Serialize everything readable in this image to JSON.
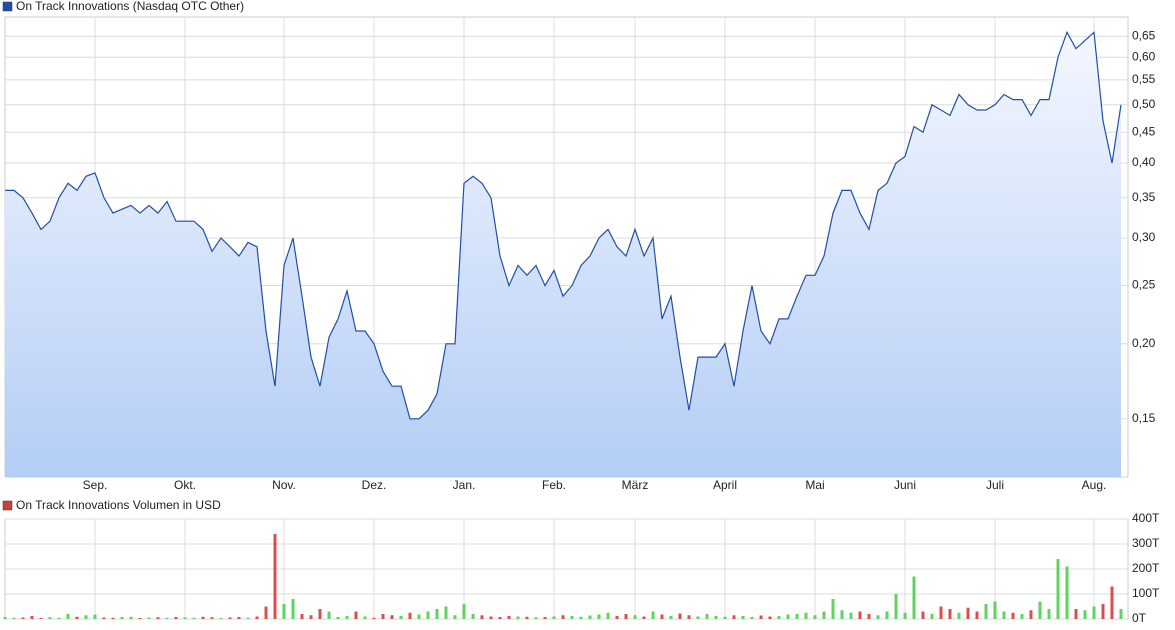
{
  "chart_data": [
    {
      "type": "line",
      "categories": [
        null,
        null,
        null,
        null,
        null,
        null,
        null,
        null,
        null,
        null,
        "Sep.",
        null,
        null,
        null,
        null,
        null,
        null,
        null,
        null,
        null,
        "Okt.",
        null,
        null,
        null,
        null,
        null,
        null,
        null,
        null,
        null,
        null,
        "Nov.",
        null,
        null,
        null,
        null,
        null,
        null,
        null,
        null,
        null,
        "Dez.",
        null,
        null,
        null,
        null,
        null,
        null,
        null,
        null,
        null,
        "Jan.",
        null,
        null,
        null,
        null,
        null,
        null,
        null,
        null,
        null,
        "Feb.",
        null,
        null,
        null,
        null,
        null,
        null,
        null,
        null,
        "März",
        null,
        null,
        null,
        null,
        null,
        null,
        null,
        null,
        null,
        "April",
        null,
        null,
        null,
        null,
        null,
        null,
        null,
        null,
        null,
        "Mai",
        null,
        null,
        null,
        null,
        null,
        null,
        null,
        null,
        null,
        "Juni",
        null,
        null,
        null,
        null,
        null,
        null,
        null,
        null,
        null,
        "Juli",
        null,
        null,
        null,
        null,
        null,
        null,
        null,
        null,
        null,
        null,
        "Aug.",
        null,
        null,
        null
      ],
      "series": [
        {
          "name": "On Track Innovations (Nasdaq OTC Other)",
          "color": "#1f4fa8",
          "values": [
            0.36,
            0.36,
            0.35,
            0.33,
            0.31,
            0.32,
            0.35,
            0.37,
            0.36,
            0.38,
            0.385,
            0.35,
            0.33,
            0.335,
            0.34,
            0.33,
            0.34,
            0.33,
            0.345,
            0.32,
            0.32,
            0.32,
            0.31,
            0.285,
            0.3,
            0.29,
            0.28,
            0.295,
            0.29,
            0.21,
            0.17,
            0.27,
            0.3,
            0.24,
            0.19,
            0.17,
            0.205,
            0.22,
            0.245,
            0.21,
            0.21,
            0.2,
            0.18,
            0.17,
            0.17,
            0.15,
            0.15,
            0.155,
            0.165,
            0.2,
            0.2,
            0.37,
            0.38,
            0.37,
            0.35,
            0.28,
            0.25,
            0.27,
            0.26,
            0.27,
            0.25,
            0.265,
            0.24,
            0.25,
            0.27,
            0.28,
            0.3,
            0.31,
            0.29,
            0.28,
            0.31,
            0.28,
            0.3,
            0.22,
            0.24,
            0.19,
            0.155,
            0.19,
            0.19,
            0.19,
            0.2,
            0.17,
            0.21,
            0.25,
            0.21,
            0.2,
            0.22,
            0.22,
            0.24,
            0.26,
            0.26,
            0.28,
            0.33,
            0.36,
            0.36,
            0.33,
            0.31,
            0.36,
            0.37,
            0.4,
            0.41,
            0.46,
            0.45,
            0.5,
            0.49,
            0.48,
            0.52,
            0.5,
            0.49,
            0.49,
            0.5,
            0.52,
            0.51,
            0.51,
            0.48,
            0.51,
            0.51,
            0.6,
            0.66,
            0.62,
            0.64,
            0.66,
            0.47,
            0.4,
            0.5
          ]
        }
      ],
      "log_scale": true,
      "ylim": [
        0.12,
        0.7
      ],
      "yticks": [
        {
          "value": 0.15,
          "label": "0,15"
        },
        {
          "value": 0.2,
          "label": "0,20"
        },
        {
          "value": 0.25,
          "label": "0,25"
        },
        {
          "value": 0.3,
          "label": "0,30"
        },
        {
          "value": 0.35,
          "label": "0,35"
        },
        {
          "value": 0.4,
          "label": "0,40"
        },
        {
          "value": 0.45,
          "label": "0,45"
        },
        {
          "value": 0.5,
          "label": "0,50"
        },
        {
          "value": 0.55,
          "label": "0,55"
        },
        {
          "value": 0.6,
          "label": "0,60"
        },
        {
          "value": 0.65,
          "label": "0,65"
        }
      ],
      "grid": true
    },
    {
      "type": "bar",
      "series": [
        {
          "name": "On Track Innovations Volumen in USD",
          "color": "#c84040",
          "up_color": "#5ed35e",
          "down_color": "#dc4e4e",
          "values": [
            8000,
            5000,
            6000,
            12000,
            4000,
            7000,
            5000,
            20000,
            9000,
            15000,
            18000,
            6000,
            5000,
            8000,
            9000,
            4000,
            6000,
            7000,
            5000,
            8000,
            6000,
            5000,
            9000,
            7000,
            4000,
            6000,
            8000,
            5000,
            10000,
            50000,
            340000,
            60000,
            80000,
            20000,
            15000,
            40000,
            30000,
            8000,
            12000,
            30000,
            10000,
            5000,
            20000,
            15000,
            12000,
            25000,
            18000,
            30000,
            40000,
            50000,
            15000,
            60000,
            20000,
            15000,
            10000,
            8000,
            12000,
            10000,
            9000,
            7000,
            8000,
            10000,
            15000,
            12000,
            9000,
            14000,
            18000,
            25000,
            12000,
            20000,
            15000,
            10000,
            30000,
            18000,
            12000,
            22000,
            15000,
            10000,
            20000,
            12000,
            9000,
            15000,
            12000,
            8000,
            14000,
            10000,
            12000,
            18000,
            20000,
            25000,
            15000,
            30000,
            80000,
            35000,
            25000,
            30000,
            20000,
            15000,
            30000,
            100000,
            25000,
            170000,
            30000,
            20000,
            50000,
            40000,
            25000,
            45000,
            30000,
            60000,
            70000,
            30000,
            25000,
            20000,
            35000,
            70000,
            40000,
            240000,
            210000,
            40000,
            35000,
            50000,
            60000,
            130000,
            40000
          ]
        }
      ],
      "ylim": [
        0,
        400000
      ],
      "yticks": [
        {
          "value": 0,
          "label": "0T"
        },
        {
          "value": 100000,
          "label": "100T"
        },
        {
          "value": 200000,
          "label": "200T"
        },
        {
          "value": 300000,
          "label": "300T"
        },
        {
          "value": 400000,
          "label": "400T"
        }
      ],
      "grid": true
    }
  ]
}
